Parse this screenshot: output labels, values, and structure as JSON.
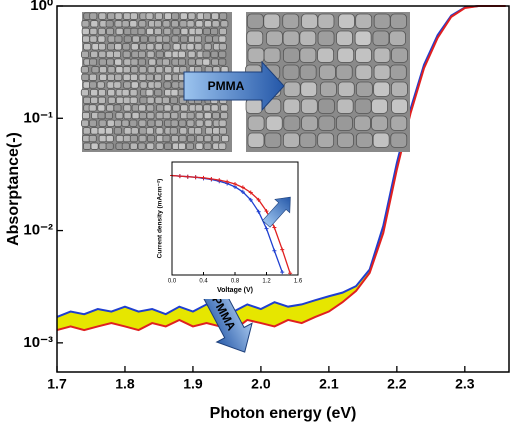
{
  "chart_data": [
    {
      "type": "area-between",
      "log_y": true,
      "xlabel": "Photon energy (eV)",
      "ylabel": "Absorptance(-)",
      "x": [
        1.7,
        1.72,
        1.74,
        1.76,
        1.78,
        1.8,
        1.82,
        1.84,
        1.86,
        1.88,
        1.9,
        1.92,
        1.94,
        1.96,
        1.98,
        2.0,
        2.02,
        2.04,
        2.06,
        2.08,
        2.1,
        2.12,
        2.14,
        2.16,
        2.18,
        2.2,
        2.22,
        2.24,
        2.26,
        2.28,
        2.3,
        2.32,
        2.34,
        2.36
      ],
      "series": [
        {
          "color": "#1f3fd0",
          "values": [
            0.0017,
            0.0019,
            0.0018,
            0.002,
            0.0019,
            0.0021,
            0.0019,
            0.002,
            0.0018,
            0.0021,
            0.0019,
            0.0022,
            0.002,
            0.0019,
            0.0022,
            0.002,
            0.0023,
            0.0021,
            0.0022,
            0.0024,
            0.0026,
            0.0028,
            0.0032,
            0.0045,
            0.011,
            0.04,
            0.12,
            0.3,
            0.55,
            0.82,
            0.97,
            1.0,
            1.0,
            1.0
          ]
        },
        {
          "color": "#e02020",
          "values": [
            0.0013,
            0.0014,
            0.0013,
            0.0014,
            0.0015,
            0.0014,
            0.0013,
            0.0015,
            0.0014,
            0.0016,
            0.0014,
            0.0015,
            0.0014,
            0.0013,
            0.0016,
            0.0015,
            0.0014,
            0.0016,
            0.0015,
            0.0017,
            0.0019,
            0.0023,
            0.0029,
            0.0042,
            0.0095,
            0.035,
            0.11,
            0.28,
            0.52,
            0.8,
            0.96,
            1.0,
            1.0,
            1.0
          ]
        }
      ],
      "fill_between": "#e6e600",
      "xlim": [
        1.7,
        2.365
      ],
      "ylim": [
        0.00055,
        1
      ],
      "xticks": [
        1.7,
        1.8,
        1.9,
        {
          "value": 2,
          "label": "2.0"
        },
        2.1,
        2.2,
        2.3
      ],
      "yticks": [
        {
          "value": 0.001,
          "label": "10⁻³"
        },
        {
          "value": 0.01,
          "label": "10⁻²"
        },
        {
          "value": 0.1,
          "label": "10⁻¹"
        },
        {
          "value": 1,
          "label": "10⁰"
        }
      ],
      "annotations": [
        "PMMA",
        "PMMA"
      ]
    },
    {
      "type": "line",
      "xlabel": "Voltage (V)",
      "ylabel": "Current density (mAcm⁻²)",
      "x": [
        0,
        0.1,
        0.2,
        0.3,
        0.4,
        0.5,
        0.6,
        0.7,
        0.8,
        0.9,
        1.0,
        1.1,
        1.2,
        1.3,
        1.4,
        1.5
      ],
      "series": [
        {
          "color": "#1f3fd0",
          "values": [
            17.6,
            17.5,
            17.4,
            17.3,
            17.1,
            16.9,
            16.6,
            16.2,
            15.6,
            14.7,
            13.3,
            11.2,
            8.2,
            4.3,
            0.5,
            null
          ]
        },
        {
          "color": "#e02020",
          "values": [
            17.6,
            17.5,
            17.4,
            17.3,
            17.2,
            17.0,
            16.8,
            16.5,
            16.1,
            15.5,
            14.6,
            13.3,
            11.3,
            8.4,
            4.5,
            0.3
          ]
        }
      ],
      "xlim": [
        0,
        1.6
      ],
      "ylim": [
        0,
        20
      ],
      "xticks": [
        {
          "value": 0,
          "label": "0.0"
        },
        0.4,
        0.8,
        1.2,
        1.6
      ]
    }
  ]
}
